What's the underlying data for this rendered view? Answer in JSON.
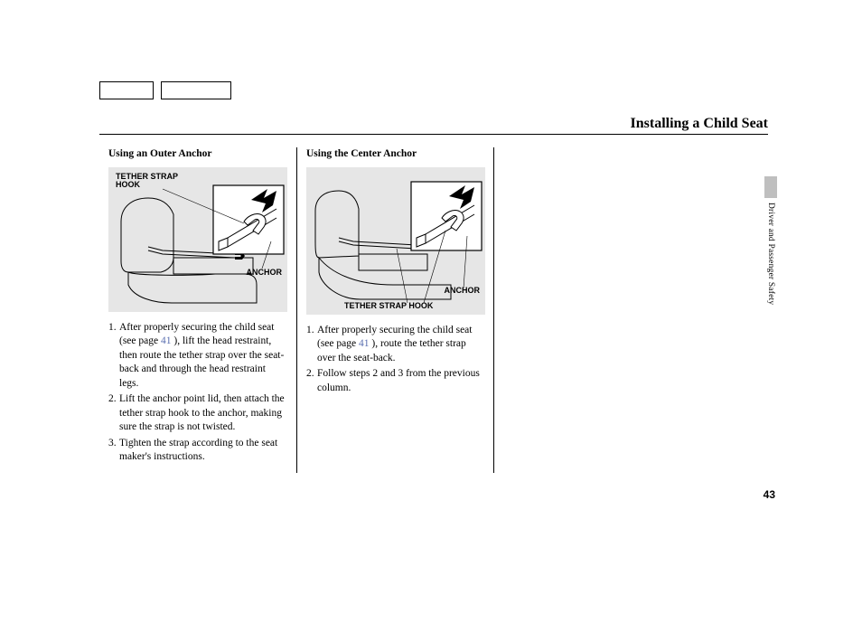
{
  "page": {
    "title": "Installing a Child Seat",
    "number": "43",
    "section": "Driver and Passenger Safety"
  },
  "col1": {
    "heading": "Using an Outer Anchor",
    "figure": {
      "label_hook": "TETHER STRAP HOOK",
      "label_anchor": "ANCHOR"
    },
    "steps": [
      {
        "pre": "After properly securing the child seat (see page ",
        "ref": "41",
        "post": " ), lift the head restraint, then route the tether strap over the seat-back and through the head restraint legs."
      },
      {
        "pre": "Lift the anchor point lid, then attach the tether strap hook to the anchor, making sure the strap is not twisted.",
        "ref": "",
        "post": ""
      },
      {
        "pre": "Tighten the strap according to the seat maker's instructions.",
        "ref": "",
        "post": ""
      }
    ]
  },
  "col2": {
    "heading": "Using the Center Anchor",
    "figure": {
      "label_hook": "TETHER STRAP HOOK",
      "label_anchor": "ANCHOR"
    },
    "steps": [
      {
        "pre": "After properly securing the child seat (see page ",
        "ref": "41",
        "post": " ), route the tether strap over the seat-back."
      },
      {
        "pre": "Follow steps 2 and 3 from the previous column.",
        "ref": "",
        "post": ""
      }
    ]
  },
  "colors": {
    "fig_bg": "#e6e6e6",
    "ref": "#5a6fb0"
  }
}
